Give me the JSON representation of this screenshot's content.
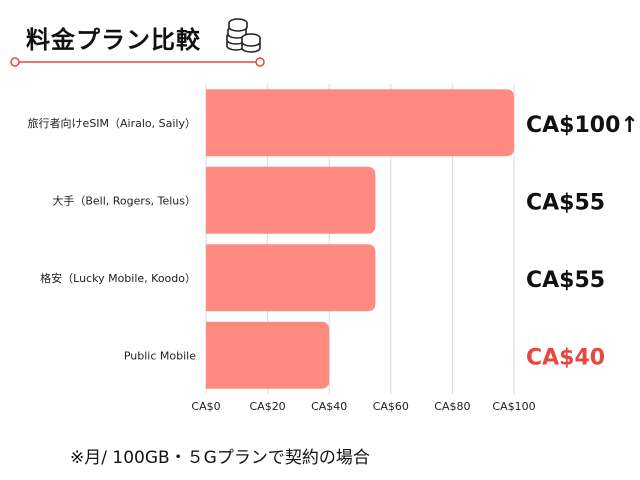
{
  "header": {
    "title": "料金プラン比較",
    "icon": "coins-stack-icon",
    "accent_color": "#e8473f"
  },
  "chart_data": {
    "type": "bar",
    "orientation": "horizontal",
    "categories": [
      "旅行者向けeSIM（Airalo, Saily）",
      "大手（Bell, Rogers, Telus）",
      "格安（Lucky Mobile, Koodo）",
      "Public Mobile"
    ],
    "values": [
      100,
      55,
      55,
      40
    ],
    "value_labels": [
      "CA$100↑",
      "CA$55",
      "CA$55",
      "CA$40"
    ],
    "value_label_colors": [
      "#111111",
      "#111111",
      "#111111",
      "#e8473f"
    ],
    "bar_color": "#ff8a80",
    "xlim": [
      0,
      100
    ],
    "x_ticks": [
      0,
      20,
      40,
      60,
      80,
      100
    ],
    "x_tick_labels": [
      "CA$0",
      "CA$20",
      "CA$40",
      "CA$60",
      "CA$80",
      "CA$100"
    ],
    "grid": true,
    "legend": "none"
  },
  "footnote": "※月/ 100GB・５Gプランで契約の場合"
}
